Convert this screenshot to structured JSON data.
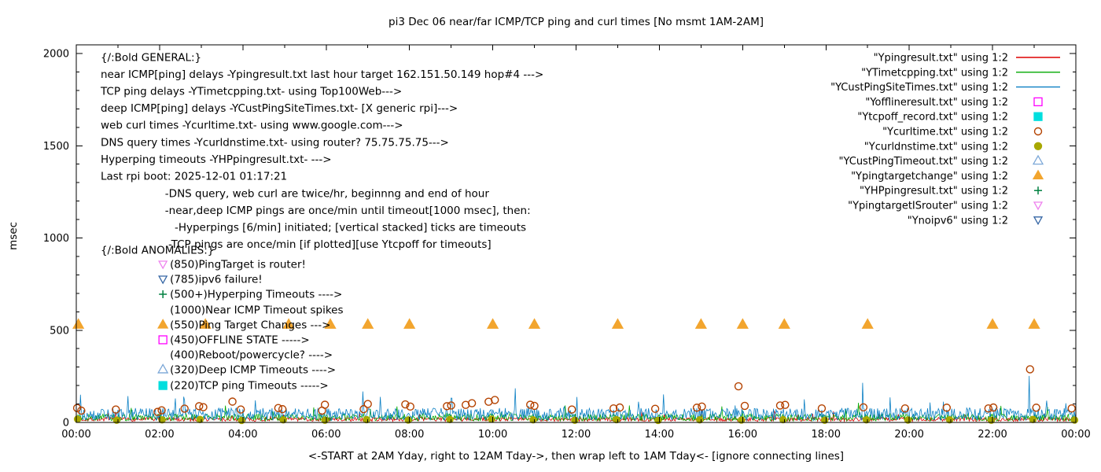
{
  "chart_data": {
    "type": "scatter",
    "title": "pi3 Dec 06  near/far ICMP/TCP ping and curl times [No msmt 1AM-2AM]",
    "ylabel": "msec",
    "xlabel": "<-START at 2AM Yday, right to 12AM Tday->, then wrap left to 1AM Tday<- [ignore connecting lines]",
    "ylim": [
      0,
      2000
    ],
    "yticks": [
      0,
      500,
      1000,
      1500,
      2000
    ],
    "xtick_hours": [
      0,
      2,
      4,
      6,
      8,
      10,
      12,
      14,
      16,
      18,
      20,
      22,
      24
    ],
    "xtick_labels": [
      "00:00",
      "02:00",
      "04:00",
      "06:00",
      "08:00",
      "10:00",
      "12:00",
      "14:00",
      "16:00",
      "18:00",
      "20:00",
      "22:00",
      "00:00"
    ],
    "legend": [
      {
        "label": "\"Ypingresult.txt\" using 1:2",
        "sample": "line",
        "color": "#dd0000",
        "filled": false
      },
      {
        "label": "\"YTimetcpping.txt\" using 1:2",
        "sample": "line",
        "color": "#00a800",
        "filled": false
      },
      {
        "label": "\"YCustPingSiteTimes.txt\" using 1:2",
        "sample": "line",
        "color": "#0a7fc4",
        "filled": false
      },
      {
        "label": "\"Yofflineresult.txt\" using 1:2",
        "sample": "square",
        "color": "#ff00ff",
        "filled": false
      },
      {
        "label": "\"Ytcpoff_record.txt\" using 1:2",
        "sample": "square",
        "color": "#00dede",
        "filled": true
      },
      {
        "label": "\"Ycurltime.txt\" using 1:2",
        "sample": "circle",
        "color": "#b44200",
        "filled": false
      },
      {
        "label": "\"Ycurldnstime.txt\" using 1:2",
        "sample": "circle",
        "color": "#a8a800",
        "filled": true
      },
      {
        "label": "\"YCustPingTimeout.txt\" using 1:2",
        "sample": "tri-up",
        "color": "#7ba7d7",
        "filled": false
      },
      {
        "label": "\"Ypingtargetchange\" using 1:2",
        "sample": "tri-up",
        "color": "#f2a52e",
        "filled": true
      },
      {
        "label": "\"YHPpingresult.txt\" using 1:2",
        "sample": "plus",
        "color": "#008040",
        "filled": false
      },
      {
        "label": "\"YpingtargetISrouter\" using 1:2",
        "sample": "tri-down",
        "color": "#ee82ee",
        "filled": false
      },
      {
        "label": "\"Ynoipv6\" using 1:2",
        "sample": "tri-down",
        "color": "#3465a4",
        "filled": false
      }
    ],
    "annotations": {
      "general": [
        {
          "t": "{/:Bold GENERAL:}",
          "x": 0.585,
          "y": 1979
        },
        {
          "t": "near ICMP[ping] delays -Ypingresult.txt last hour target 162.151.50.149 hop#4 --->",
          "x": 0.585,
          "y": 1887
        },
        {
          "t": "TCP ping delays -YTimetcpping.txt- using Top100Web--->",
          "x": 0.585,
          "y": 1795
        },
        {
          "t": "deep ICMP[ping] delays -YCustPingSiteTimes.txt- [X generic rpi]--->",
          "x": 0.585,
          "y": 1703
        },
        {
          "t": "web curl times -Ycurltime.txt- using www.google.com--->",
          "x": 0.585,
          "y": 1611
        },
        {
          "t": "DNS query times -Ycurldnstime.txt- using router? 75.75.75.75--->",
          "x": 0.585,
          "y": 1518
        },
        {
          "t": "Hyperping timeouts -YHPpingresult.txt- --->",
          "x": 0.585,
          "y": 1426
        },
        {
          "t": "Last rpi boot: 2025-12-01 01:17:21",
          "x": 0.585,
          "y": 1334
        },
        {
          "t": "-DNS query, web curl are twice/hr, beginnng and end of hour",
          "x": 2.13,
          "y": 1242
        },
        {
          "t": "-near,deep ICMP pings are once/min until timeout[1000 msec], then:",
          "x": 2.13,
          "y": 1150
        },
        {
          "t": "-Hyperpings [6/min] initiated; [vertical stacked] ticks are timeouts",
          "x": 2.36,
          "y": 1058
        },
        {
          "t": "-TCP pings are once/min [if plotted][use Ytcpoff for timeouts]",
          "x": 2.21,
          "y": 965
        },
        {
          "t": "{/:Bold ANOMALIES:}",
          "x": 0.585,
          "y": 934
        }
      ],
      "anomalies_text_x": 2.25,
      "anomalies_marker_x": 2.08,
      "anomalies": [
        {
          "y": 857,
          "marker": "tri-down",
          "color": "#ee82ee",
          "filled": false,
          "t": "(850)PingTarget is router!"
        },
        {
          "y": 776,
          "marker": "tri-down",
          "color": "#3465a4",
          "filled": false,
          "t": "(785)ipv6 failure!"
        },
        {
          "y": 695,
          "marker": "plus",
          "color": "#008040",
          "filled": false,
          "t": "(500+)Hyperping Timeouts ---->"
        },
        {
          "y": 610,
          "marker": null,
          "color": "#000000",
          "filled": false,
          "t": "(1000)Near ICMP Timeout spikes"
        },
        {
          "y": 529,
          "marker": "tri-up",
          "color": "#f2a52e",
          "filled": true,
          "t": "(550)Ping Target Changes --->"
        },
        {
          "y": 448,
          "marker": "square",
          "color": "#ff00ff",
          "filled": false,
          "t": "(450)OFFLINE STATE ----->"
        },
        {
          "y": 367,
          "marker": null,
          "color": "#000000",
          "filled": false,
          "t": "(400)Reboot/powercycle? ---->"
        },
        {
          "y": 286,
          "marker": "tri-up",
          "color": "#7ba7d7",
          "filled": false,
          "t": "(320)Deep ICMP Timeouts ---->"
        },
        {
          "y": 200,
          "marker": "square",
          "color": "#00dede",
          "filled": true,
          "t": "(220)TCP ping Timeouts ----->"
        }
      ]
    },
    "series": {
      "pingtargetchange": {
        "color": "#f2a52e",
        "y": 530,
        "x": [
          0.05,
          3.1,
          5.1,
          6.1,
          7.0,
          8.0,
          10.0,
          11.0,
          13.0,
          15.0,
          16.0,
          17.0,
          19.0,
          22.0,
          23.0
        ]
      },
      "curltime": {
        "color": "#b44200",
        "points": [
          [
            0.02,
            78
          ],
          [
            0.12,
            64
          ],
          [
            0.95,
            70
          ],
          [
            1.95,
            57
          ],
          [
            2.05,
            66
          ],
          [
            2.6,
            75
          ],
          [
            2.95,
            88
          ],
          [
            3.05,
            83
          ],
          [
            3.75,
            113
          ],
          [
            3.95,
            70
          ],
          [
            4.85,
            78
          ],
          [
            4.95,
            72
          ],
          [
            5.9,
            64
          ],
          [
            5.97,
            96
          ],
          [
            6.9,
            72
          ],
          [
            7.0,
            100
          ],
          [
            7.9,
            98
          ],
          [
            8.02,
            86
          ],
          [
            8.9,
            88
          ],
          [
            9.0,
            92
          ],
          [
            9.35,
            95
          ],
          [
            9.5,
            104
          ],
          [
            9.9,
            112
          ],
          [
            10.05,
            122
          ],
          [
            10.9,
            96
          ],
          [
            11.0,
            90
          ],
          [
            11.9,
            70
          ],
          [
            12.9,
            76
          ],
          [
            13.05,
            81
          ],
          [
            13.9,
            74
          ],
          [
            14.9,
            80
          ],
          [
            15.02,
            86
          ],
          [
            15.9,
            196
          ],
          [
            16.05,
            90
          ],
          [
            16.9,
            92
          ],
          [
            17.02,
            95
          ],
          [
            17.9,
            76
          ],
          [
            18.9,
            82
          ],
          [
            19.9,
            76
          ],
          [
            20.9,
            80
          ],
          [
            21.9,
            76
          ],
          [
            22.02,
            81
          ],
          [
            22.9,
            288
          ],
          [
            23.05,
            80
          ],
          [
            23.9,
            76
          ]
        ]
      },
      "curldnstime": {
        "color": "#a8a800",
        "points": [
          [
            0.03,
            18
          ],
          [
            0.97,
            12
          ],
          [
            2.06,
            14
          ],
          [
            2.97,
            16
          ],
          [
            3.97,
            11
          ],
          [
            4.97,
            14
          ],
          [
            5.97,
            12
          ],
          [
            6.97,
            15
          ],
          [
            7.97,
            13
          ],
          [
            8.97,
            16
          ],
          [
            9.97,
            18
          ],
          [
            10.97,
            14
          ],
          [
            11.97,
            12
          ],
          [
            12.97,
            15
          ],
          [
            13.97,
            11
          ],
          [
            14.97,
            14
          ],
          [
            15.97,
            13
          ],
          [
            16.97,
            15
          ],
          [
            17.97,
            12
          ],
          [
            18.97,
            14
          ],
          [
            19.97,
            13
          ],
          [
            20.97,
            14
          ],
          [
            21.97,
            12
          ],
          [
            22.97,
            16
          ],
          [
            23.97,
            13
          ]
        ]
      },
      "noise": [
        {
          "name": "Ypingresult",
          "color": "#dd0000",
          "seed": 7,
          "base": 6,
          "amp": 22,
          "spikes": []
        },
        {
          "name": "YTimetcpping",
          "color": "#00a800",
          "seed": 13,
          "base": 8,
          "amp": 38,
          "spikes": []
        },
        {
          "name": "YCustPingSiteTimes",
          "color": "#0a7fc4",
          "seed": 29,
          "base": 10,
          "amp": 68,
          "spikes": [
            [
              4.3,
              120
            ],
            [
              9.0,
              132
            ],
            [
              13.5,
              112
            ],
            [
              18.87,
              215
            ],
            [
              20.5,
              108
            ],
            [
              22.88,
              252
            ],
            [
              23.3,
              118
            ]
          ]
        }
      ]
    }
  }
}
